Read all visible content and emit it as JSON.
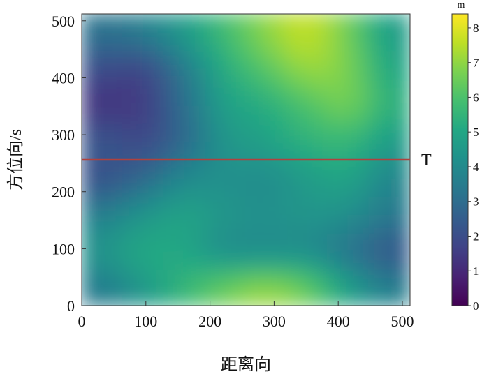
{
  "chart_data": {
    "type": "heatmap",
    "title": "",
    "xlabel": "距离向",
    "ylabel": "方位向/s",
    "xlim": [
      0,
      512
    ],
    "ylim": [
      0,
      512
    ],
    "xticks": [
      0,
      100,
      200,
      300,
      400,
      500
    ],
    "yticks": [
      0,
      100,
      200,
      300,
      400,
      500
    ],
    "grid": false,
    "colormap": "viridis",
    "colorbar": {
      "unit": "m",
      "range": [
        0,
        8.4
      ],
      "ticks": [
        0,
        1,
        2,
        3,
        4,
        5,
        6,
        7,
        8
      ]
    },
    "annotation": {
      "text": "T",
      "line_y": 256,
      "line_color": "#b0413e"
    },
    "z_grid": {
      "x_centers": [
        32,
        96,
        160,
        224,
        288,
        352,
        416,
        480
      ],
      "y_centers": [
        32,
        96,
        160,
        224,
        288,
        352,
        416,
        480
      ],
      "rows_top_to_bottom": [
        [
          3.2,
          3.6,
          4.6,
          5.8,
          7.0,
          7.8,
          6.6,
          4.6
        ],
        [
          2.0,
          1.6,
          3.4,
          5.2,
          6.2,
          7.2,
          6.8,
          5.0
        ],
        [
          1.2,
          1.4,
          3.0,
          4.8,
          5.2,
          6.0,
          6.8,
          5.4
        ],
        [
          2.4,
          1.8,
          2.8,
          4.4,
          4.8,
          5.4,
          5.6,
          4.6
        ],
        [
          2.0,
          2.8,
          4.0,
          4.2,
          4.0,
          4.6,
          5.0,
          3.8
        ],
        [
          3.6,
          4.4,
          5.0,
          4.4,
          4.2,
          4.4,
          4.2,
          3.4
        ],
        [
          4.4,
          5.2,
          5.0,
          4.0,
          4.0,
          4.0,
          3.2,
          2.2
        ],
        [
          3.4,
          4.4,
          5.6,
          6.6,
          7.2,
          6.6,
          4.8,
          3.6
        ]
      ]
    }
  }
}
